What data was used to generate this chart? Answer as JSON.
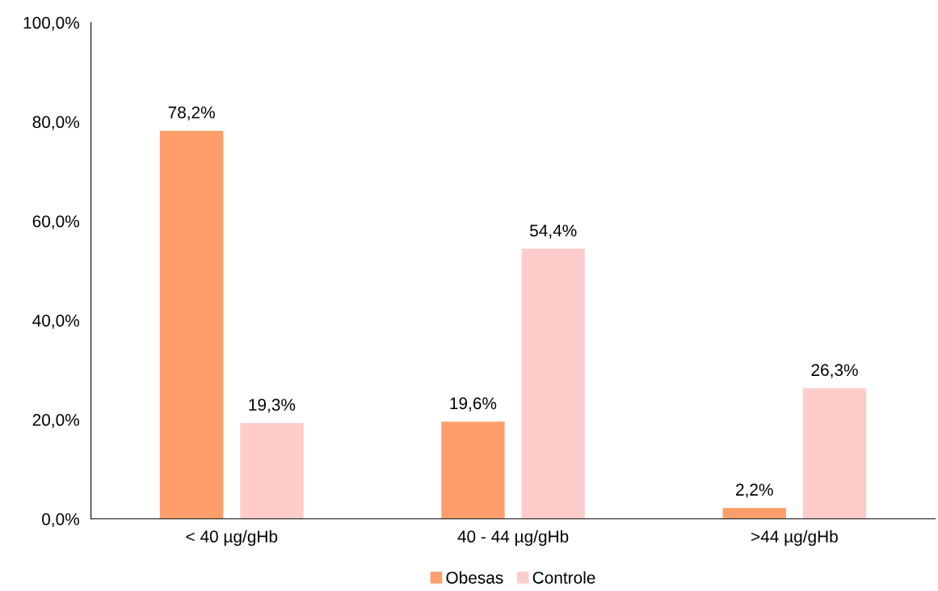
{
  "chart_data": {
    "type": "bar",
    "categories": [
      "< 40 µg/gHb",
      "40 - 44 µg/gHb",
      ">44 µg/gHb"
    ],
    "series": [
      {
        "name": "Obesas",
        "color": "#ff9e6a",
        "values": [
          78.2,
          19.6,
          2.2
        ],
        "value_labels": [
          "78,2%",
          "19,6%",
          "2,2%"
        ]
      },
      {
        "name": "Controle",
        "color": "#ffcccc",
        "values": [
          19.3,
          54.4,
          26.3
        ],
        "value_labels": [
          "19,3%",
          "54,4%",
          "26,3%"
        ]
      }
    ],
    "ylim": [
      0,
      100
    ],
    "yticks": [
      {
        "value": 0,
        "label": "0,0%"
      },
      {
        "value": 20,
        "label": "20,0%"
      },
      {
        "value": 40,
        "label": "40,0%"
      },
      {
        "value": 60,
        "label": "60,0%"
      },
      {
        "value": 80,
        "label": "80,0%"
      },
      {
        "value": 100,
        "label": "100,0%"
      }
    ],
    "grid": false,
    "legend": "bottom"
  }
}
